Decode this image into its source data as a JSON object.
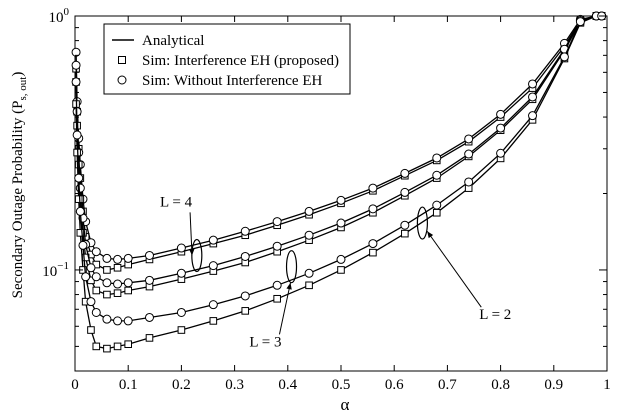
{
  "chart_data": {
    "type": "line",
    "xlabel": "α",
    "ylabel": "Secondary Outage Probability (P",
    "ylabel_sub": "s, out",
    "ylabel_close": ")",
    "xlim": [
      0,
      1
    ],
    "ylim": [
      0.04,
      1
    ],
    "yscale": "log",
    "grid": false,
    "legend_position": "top-left",
    "x_ticks": [
      0,
      0.1,
      0.2,
      0.3,
      0.4,
      0.5,
      0.6,
      0.7,
      0.8,
      0.9,
      1
    ],
    "x_tick_labels": [
      "0",
      "0.1",
      "0.2",
      "0.3",
      "0.4",
      "0.5",
      "0.6",
      "0.7",
      "0.8",
      "0.9",
      "1"
    ],
    "y_ticks": [
      {
        "value": 0.1,
        "base": "10",
        "exp": "−1"
      },
      {
        "value": 1,
        "base": "10",
        "exp": "0"
      }
    ],
    "legend": [
      {
        "label": "Analytical",
        "marker": "line"
      },
      {
        "label": "Sim: Interference EH (proposed)",
        "marker": "square"
      },
      {
        "label": "Sim: Without Interference EH",
        "marker": "circle"
      }
    ],
    "x": [
      0.002,
      0.004,
      0.007,
      0.01,
      0.015,
      0.02,
      0.03,
      0.04,
      0.06,
      0.08,
      0.1,
      0.14,
      0.2,
      0.26,
      0.32,
      0.38,
      0.44,
      0.5,
      0.56,
      0.62,
      0.68,
      0.74,
      0.8,
      0.86,
      0.92,
      0.95,
      0.98,
      0.99
    ],
    "series": [
      {
        "group": "L = 4",
        "kind": "proposed",
        "values": [
          0.62,
          0.42,
          0.3,
          0.23,
          0.17,
          0.135,
          0.115,
          0.105,
          0.1,
          0.102,
          0.105,
          0.11,
          0.118,
          0.127,
          0.137,
          0.15,
          0.165,
          0.183,
          0.205,
          0.235,
          0.27,
          0.32,
          0.4,
          0.52,
          0.76,
          0.96,
          1.0,
          1.0
        ]
      },
      {
        "group": "L = 4",
        "kind": "without",
        "values": [
          0.72,
          0.46,
          0.33,
          0.26,
          0.19,
          0.155,
          0.128,
          0.118,
          0.111,
          0.11,
          0.111,
          0.114,
          0.122,
          0.131,
          0.142,
          0.155,
          0.17,
          0.188,
          0.21,
          0.24,
          0.276,
          0.328,
          0.41,
          0.54,
          0.78,
          0.97,
          1.0,
          1.0
        ]
      },
      {
        "group": "L = 3",
        "kind": "proposed",
        "values": [
          0.55,
          0.37,
          0.26,
          0.19,
          0.14,
          0.112,
          0.091,
          0.083,
          0.08,
          0.081,
          0.083,
          0.086,
          0.092,
          0.099,
          0.107,
          0.118,
          0.131,
          0.147,
          0.168,
          0.196,
          0.23,
          0.28,
          0.355,
          0.47,
          0.73,
          0.95,
          1.0,
          1.0
        ]
      },
      {
        "group": "L = 3",
        "kind": "without",
        "values": [
          0.64,
          0.42,
          0.29,
          0.21,
          0.16,
          0.126,
          0.102,
          0.094,
          0.089,
          0.088,
          0.089,
          0.091,
          0.097,
          0.104,
          0.113,
          0.124,
          0.137,
          0.153,
          0.174,
          0.202,
          0.236,
          0.286,
          0.362,
          0.48,
          0.74,
          0.96,
          1.0,
          1.0
        ]
      },
      {
        "group": "L = 2",
        "kind": "proposed",
        "values": [
          0.45,
          0.29,
          0.19,
          0.14,
          0.1,
          0.075,
          0.058,
          0.05,
          0.049,
          0.05,
          0.051,
          0.054,
          0.058,
          0.063,
          0.069,
          0.077,
          0.087,
          0.1,
          0.117,
          0.139,
          0.168,
          0.21,
          0.275,
          0.39,
          0.68,
          0.94,
          1.0,
          1.0
        ]
      },
      {
        "group": "L = 2",
        "kind": "without",
        "values": [
          0.55,
          0.34,
          0.23,
          0.17,
          0.125,
          0.094,
          0.075,
          0.068,
          0.064,
          0.063,
          0.063,
          0.065,
          0.068,
          0.073,
          0.079,
          0.087,
          0.097,
          0.11,
          0.127,
          0.15,
          0.18,
          0.222,
          0.288,
          0.405,
          0.69,
          0.95,
          1.0,
          1.0
        ]
      }
    ],
    "annotations": [
      {
        "text": "L = 4",
        "text_at": [
          0.19,
          0.178
        ],
        "ellipse_at": [
          0.229,
          0.114
        ],
        "arrow_to": [
          0.22,
          0.114
        ]
      },
      {
        "text": "L = 3",
        "text_at": [
          0.358,
          0.05
        ],
        "ellipse_at": [
          0.407,
          0.103
        ],
        "arrow_to": [
          0.405,
          0.089
        ]
      },
      {
        "text": "L = 2",
        "text_at": [
          0.79,
          0.064
        ],
        "ellipse_at": [
          0.653,
          0.153
        ],
        "arrow_to": [
          0.662,
          0.142
        ]
      }
    ]
  }
}
